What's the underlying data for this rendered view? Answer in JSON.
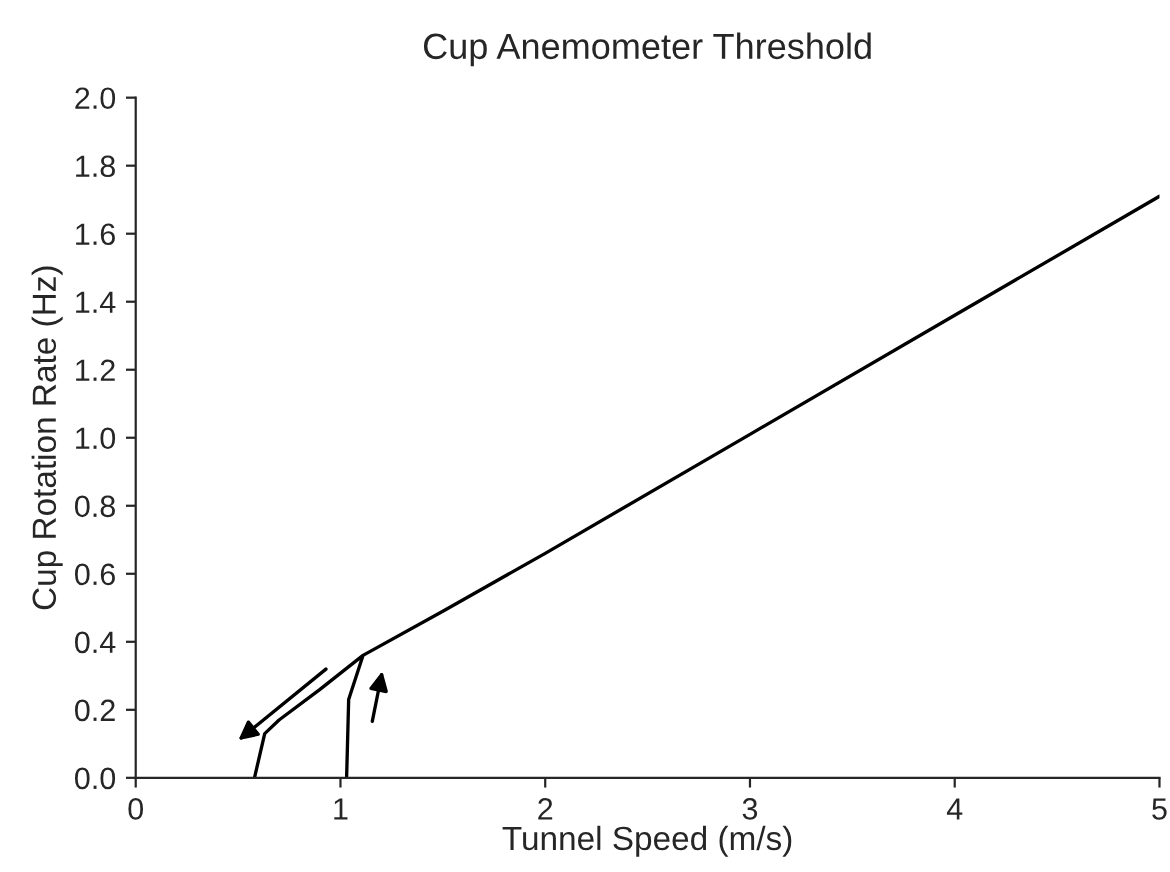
{
  "chart_data": {
    "type": "line",
    "title": "Cup Anemometer Threshold",
    "xlabel": "Tunnel Speed (m/s)",
    "ylabel": "Cup Rotation Rate (Hz)",
    "series": [
      {
        "color": "#000000",
        "x": [
          0.58,
          0.63,
          0.7,
          0.9,
          1.11,
          1.04,
          1.03,
          1.04,
          1.11,
          1.5,
          2,
          3,
          4,
          5
        ],
        "values": [
          0.0,
          0.13,
          0.17,
          0.26,
          0.36,
          0.23,
          0.0,
          0.23,
          0.36,
          0.49,
          0.66,
          1.01,
          1.36,
          1.71
        ]
      }
    ],
    "xlim": [
      0,
      5
    ],
    "xticks": [
      0,
      1,
      2,
      3,
      4,
      5
    ],
    "ylim": [
      0,
      2.0
    ],
    "yticks": [
      {
        "value": 0,
        "label": "0.0"
      },
      {
        "value": 0.2,
        "label": "0.2"
      },
      {
        "value": 0.4,
        "label": "0.4"
      },
      {
        "value": 0.6,
        "label": "0.6"
      },
      {
        "value": 0.8,
        "label": "0.8"
      },
      {
        "value": 1.0,
        "label": "1.0"
      },
      {
        "value": 1.2,
        "label": "1.2"
      },
      {
        "value": 1.4,
        "label": "1.4"
      },
      {
        "value": 1.6,
        "label": "1.6"
      },
      {
        "value": 1.8,
        "label": "1.8"
      },
      {
        "value": 2.0,
        "label": "2.0"
      }
    ],
    "grid": false,
    "marker": "none",
    "line_style": "solid"
  }
}
